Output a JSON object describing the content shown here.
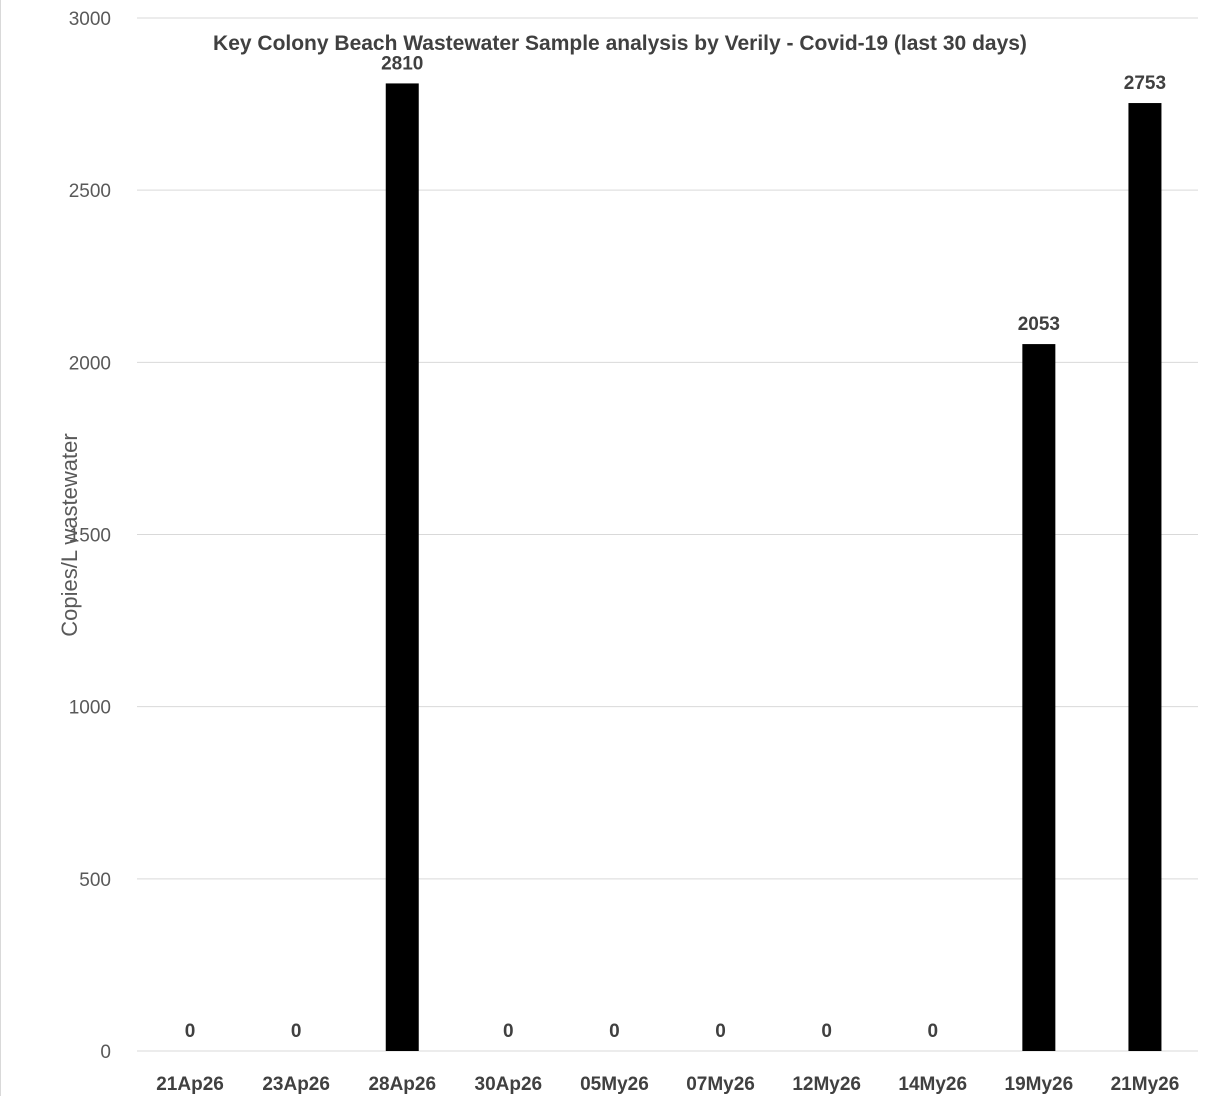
{
  "chart_data": {
    "type": "bar",
    "title": "Key Colony Beach Wastewater Sample analysis by Verily - Covid-19 (last 30 days)",
    "xlabel": "",
    "ylabel": "Copies/L wastewater",
    "categories": [
      "21Ap26",
      "23Ap26",
      "28Ap26",
      "30Ap26",
      "05My26",
      "07My26",
      "12My26",
      "14My26",
      "19My26",
      "21My26"
    ],
    "values": [
      0,
      0,
      2810,
      0,
      0,
      0,
      0,
      0,
      2053,
      2753
    ],
    "data_labels": [
      "0",
      "0",
      "2810",
      "0",
      "0",
      "0",
      "0",
      "0",
      "2053",
      "2753"
    ],
    "ylim": [
      0,
      3000
    ],
    "yticks": [
      0,
      500,
      1000,
      1500,
      2000,
      2500,
      3000
    ],
    "ytick_labels": [
      "0",
      "500",
      "1000",
      "1500",
      "2000",
      "2500",
      "3000"
    ],
    "grid": true,
    "legend": "none",
    "colors": {
      "bar": "#000000",
      "gridline": "#d9d9d9",
      "text": "#404040",
      "axis_text": "#595959"
    }
  }
}
